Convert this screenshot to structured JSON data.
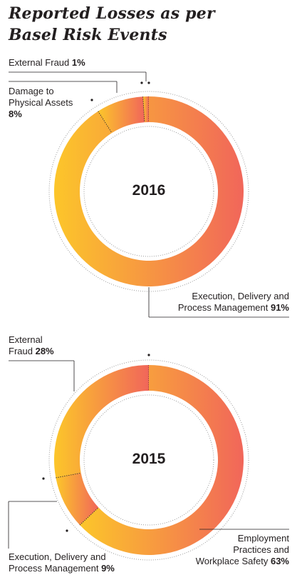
{
  "title": {
    "line1": "Reported Losses as per",
    "line2": "Basel Risk Events"
  },
  "colors": {
    "gradient_start": "#fcc62a",
    "gradient_end": "#f1665a",
    "leader": "#231f20",
    "dotted_ring": "#9a9a9a"
  },
  "chart_data": [
    {
      "type": "pie",
      "style": "donut",
      "title": "2016",
      "slices": [
        {
          "label": "External Fraud",
          "value": 1
        },
        {
          "label": "Damage to Physical Assets",
          "value": 8
        },
        {
          "label": "Execution, Delivery and Process Management",
          "value": 91
        }
      ]
    },
    {
      "type": "pie",
      "style": "donut",
      "title": "2015",
      "slices": [
        {
          "label": "External Fraud",
          "value": 28
        },
        {
          "label": "Execution, Delivery and Process Management",
          "value": 9
        },
        {
          "label": "Employment Practices and Workplace Safety",
          "value": 63
        }
      ]
    }
  ],
  "labels": {
    "c2016": {
      "ext_fraud": {
        "text": "External Fraud",
        "pct": "1%"
      },
      "damage": {
        "line1": "Damage to",
        "line2": "Physical Assets",
        "pct": "8%"
      },
      "exec": {
        "line1": "Execution, Delivery and",
        "line2": "Process Management",
        "pct": "91%"
      }
    },
    "c2015": {
      "ext_fraud": {
        "line1": "External",
        "line2": "Fraud",
        "pct": "28%"
      },
      "employment": {
        "line1": "Employment",
        "line2": "Practices and",
        "line3": "Workplace Safety",
        "pct": "63%"
      },
      "exec": {
        "line1": "Execution, Delivery and",
        "line2": "Process Management",
        "pct": "9%"
      }
    }
  }
}
